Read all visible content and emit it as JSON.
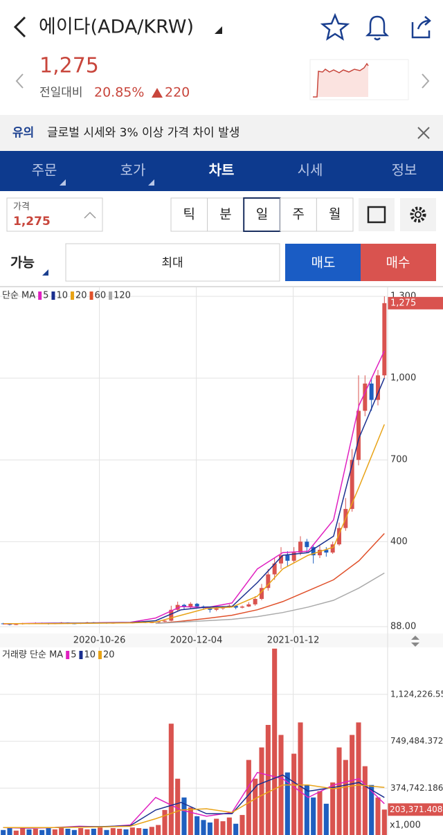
{
  "header": {
    "title": "에이다(ADA/KRW)",
    "price": "1,275",
    "change_label": "전일대비",
    "change_rate": "20.85%",
    "change_amount": "220"
  },
  "notice": {
    "tag": "유의",
    "text": "글로벌 시세와 3% 이상 가격 차이 발생"
  },
  "tabs": [
    "주문",
    "호가",
    "차트",
    "시세",
    "정보"
  ],
  "price_box": {
    "label": "가격",
    "value": "1,275"
  },
  "periods": [
    "틱",
    "분",
    "일",
    "주",
    "월"
  ],
  "order": {
    "available": "가능",
    "max": "최대",
    "sell": "매도",
    "buy": "매수"
  },
  "chart": {
    "type": "candlestick",
    "legend_title": "단순 MA",
    "xlim": [
      "2020-09-16",
      "2021-02-19"
    ],
    "xticks": [
      "2020-10-26",
      "2020-12-04",
      "2021-01-12"
    ],
    "ylim": [
      63,
      1333
    ],
    "yticks": [
      {
        "value": 88,
        "label": "88.00"
      },
      400,
      700,
      {
        "value": 1000,
        "label": "1,000"
      },
      {
        "value": 1300,
        "label": "1,300"
      }
    ],
    "up_color": "#d9534f",
    "down_color": "#1f5fbf",
    "last_price": {
      "value": 1275,
      "label": "1,275"
    },
    "candles": [
      [
        100,
        102,
        96,
        98
      ],
      [
        98,
        99,
        93,
        95
      ],
      [
        95,
        99,
        94,
        97
      ],
      [
        97,
        102,
        96,
        100
      ],
      [
        100,
        101,
        97,
        99
      ],
      [
        99,
        104,
        98,
        102
      ],
      [
        102,
        103,
        98,
        100
      ],
      [
        100,
        101,
        96,
        98
      ],
      [
        98,
        102,
        97,
        101
      ],
      [
        101,
        105,
        100,
        103
      ],
      [
        103,
        104,
        98,
        100
      ],
      [
        100,
        101,
        97,
        99
      ],
      [
        99,
        103,
        98,
        102
      ],
      [
        102,
        106,
        101,
        104
      ],
      [
        104,
        105,
        100,
        101
      ],
      [
        101,
        104,
        100,
        103
      ],
      [
        103,
        104,
        99,
        100
      ],
      [
        100,
        103,
        99,
        102
      ],
      [
        102,
        105,
        101,
        104
      ],
      [
        104,
        105,
        100,
        101
      ],
      [
        101,
        104,
        100,
        103
      ],
      [
        103,
        107,
        102,
        105
      ],
      [
        105,
        106,
        101,
        102
      ],
      [
        102,
        105,
        101,
        104
      ],
      [
        104,
        109,
        103,
        107
      ],
      [
        107,
        115,
        105,
        110
      ],
      [
        110,
        165,
        108,
        150
      ],
      [
        150,
        180,
        145,
        168
      ],
      [
        168,
        172,
        152,
        160
      ],
      [
        160,
        178,
        155,
        172
      ],
      [
        172,
        175,
        158,
        162
      ],
      [
        162,
        166,
        150,
        158
      ],
      [
        158,
        160,
        140,
        150
      ],
      [
        150,
        160,
        145,
        155
      ],
      [
        155,
        164,
        150,
        160
      ],
      [
        160,
        170,
        157,
        165
      ],
      [
        165,
        168,
        152,
        158
      ],
      [
        158,
        166,
        155,
        162
      ],
      [
        162,
        178,
        160,
        170
      ],
      [
        170,
        200,
        165,
        190
      ],
      [
        190,
        245,
        185,
        230
      ],
      [
        230,
        300,
        220,
        280
      ],
      [
        280,
        340,
        260,
        320
      ],
      [
        320,
        380,
        300,
        350
      ],
      [
        350,
        365,
        310,
        330
      ],
      [
        330,
        380,
        320,
        360
      ],
      [
        360,
        420,
        350,
        400
      ],
      [
        400,
        410,
        360,
        380
      ],
      [
        380,
        385,
        320,
        350
      ],
      [
        350,
        385,
        340,
        370
      ],
      [
        370,
        380,
        345,
        360
      ],
      [
        360,
        400,
        355,
        390
      ],
      [
        390,
        470,
        385,
        450
      ],
      [
        450,
        560,
        440,
        520
      ],
      [
        520,
        740,
        510,
        700
      ],
      [
        700,
        1010,
        680,
        880
      ],
      [
        880,
        1010,
        860,
        980
      ],
      [
        980,
        1000,
        880,
        920
      ],
      [
        920,
        1030,
        900,
        1010
      ],
      [
        1010,
        1300,
        1000,
        1275
      ]
    ],
    "ma": [
      {
        "name": "5",
        "color": "#e020c0",
        "values": [
          98,
          100,
          101,
          101,
          103,
          104,
          120,
          162,
          158,
          175,
          300,
          360,
          365,
          480,
          900,
          1100
        ]
      },
      {
        "name": "10",
        "color": "#1a2f8f",
        "values": [
          99,
          99,
          100,
          101,
          102,
          103,
          110,
          150,
          160,
          162,
          250,
          350,
          360,
          420,
          780,
          1000
        ]
      },
      {
        "name": "20",
        "color": "#e8a317",
        "values": [
          99,
          99,
          99,
          100,
          101,
          102,
          105,
          130,
          155,
          160,
          200,
          300,
          350,
          380,
          600,
          830
        ]
      },
      {
        "name": "60",
        "color": "#e0502a",
        "values": [
          null,
          null,
          null,
          null,
          null,
          null,
          100,
          108,
          118,
          130,
          150,
          180,
          220,
          260,
          330,
          430
        ]
      },
      {
        "name": "120",
        "color": "#aaaaaa",
        "values": [
          null,
          null,
          null,
          null,
          null,
          null,
          100,
          105,
          110,
          115,
          125,
          140,
          160,
          185,
          230,
          285
        ]
      }
    ],
    "volume": {
      "title": "거래량 단순 MA",
      "unit": "x1,000",
      "ylim": [
        0,
        1500000
      ],
      "yticks": [
        {
          "value": 374742.186,
          "label": "374,742.186"
        },
        {
          "value": 749484.372,
          "label": "749,484.372"
        },
        {
          "value": 1124226.558,
          "label": "1,124,226.558"
        }
      ],
      "last_value": {
        "value": 203371.408,
        "label": "203,371.408"
      },
      "values": [
        40000,
        55000,
        35000,
        60000,
        45000,
        50000,
        40000,
        55000,
        45000,
        60000,
        50000,
        40000,
        55000,
        45000,
        50000,
        60000,
        40000,
        55000,
        50000,
        45000,
        60000,
        55000,
        50000,
        65000,
        80000,
        200000,
        890000,
        450000,
        300000,
        220000,
        150000,
        120000,
        100000,
        130000,
        110000,
        140000,
        90000,
        160000,
        600000,
        450000,
        700000,
        880000,
        1490000,
        800000,
        500000,
        650000,
        900000,
        400000,
        300000,
        350000,
        250000,
        420000,
        700000,
        600000,
        800000,
        900000,
        550000,
        400000,
        300000,
        203371.408
      ],
      "ma": [
        {
          "name": "5",
          "color": "#e020c0",
          "values": [
            60000,
            55000,
            60000,
            70000,
            65000,
            80000,
            300000,
            200000,
            150000,
            180000,
            500000,
            450000,
            300000,
            400000,
            450000,
            250000
          ]
        },
        {
          "name": "10",
          "color": "#1a2f8f",
          "values": [
            60000,
            58000,
            60000,
            65000,
            68000,
            75000,
            200000,
            260000,
            170000,
            170000,
            400000,
            480000,
            350000,
            380000,
            420000,
            300000
          ]
        },
        {
          "name": "20",
          "color": "#e8a317",
          "values": [
            60000,
            60000,
            60000,
            62000,
            65000,
            70000,
            130000,
            200000,
            210000,
            180000,
            300000,
            400000,
            400000,
            370000,
            400000,
            380000
          ]
        }
      ]
    }
  }
}
